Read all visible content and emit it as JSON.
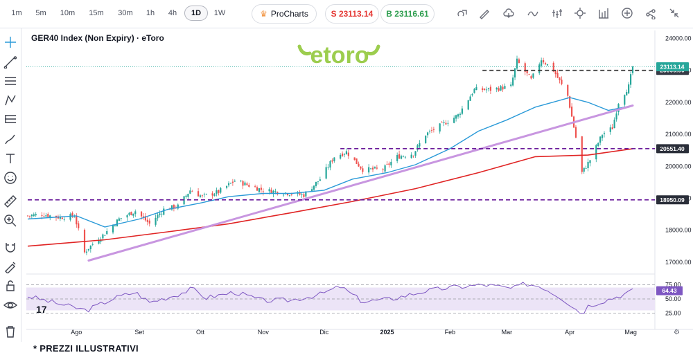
{
  "toolbar": {
    "timeframes": [
      "1m",
      "5m",
      "10m",
      "15m",
      "30m",
      "1h",
      "4h",
      "1D",
      "1W"
    ],
    "active_timeframe": "1D",
    "procharts_label": "ProCharts",
    "sell_label": "S 23113.14",
    "buy_label": "B 23116.61",
    "icons": [
      "compare-icon",
      "draw-icon",
      "cloud-icon",
      "line-type-icon",
      "indicators-icon",
      "settings-icon",
      "layout-icon",
      "add-icon",
      "share-icon",
      "collapse-icon"
    ]
  },
  "left_tools": [
    "crosshair-icon",
    "trendline-icon",
    "horizontal-lines-icon",
    "pattern-icon",
    "fib-icon",
    "brush-icon",
    "text-icon",
    "emoji-icon",
    "ruler-icon",
    "zoom-in-icon",
    "magnet-icon",
    "lock-drawing-icon",
    "lock-icon",
    "eye-icon",
    "trash-icon"
  ],
  "footer_text": "* PREZZI ILLUSTRATIVI",
  "colors": {
    "up": "#26a69a",
    "down": "#ef5350",
    "ma_fast": "#2a9ad8",
    "ma_slow": "#e02424",
    "trendline": "#c896e0",
    "level": "#6a1b9a",
    "rsi": "#7e57c2",
    "rsi_band": "#ece4f7",
    "logo": "#9ccd4e"
  },
  "chart_data": {
    "type": "candlestick",
    "title": "GER40 Index (Non Expiry) · eToro",
    "logo_text": "etoro",
    "y_ticks": [
      17000,
      18000,
      19000,
      20000,
      21000,
      22000,
      23000,
      24000
    ],
    "y_tick_labels": [
      "17000.00",
      "18000.00",
      "19000.00",
      "20000.00",
      "21000.00",
      "22000.00",
      "23000.00",
      "24000.00"
    ],
    "ylim": [
      16650,
      24250
    ],
    "x_labels": [
      "Ago",
      "Set",
      "Ott",
      "Nov",
      "Dic",
      "2025",
      "Feb",
      "Mar",
      "Apr",
      "Mag"
    ],
    "x_label_dates": [
      "2024-08-01",
      "2024-09-01",
      "2024-10-01",
      "2024-11-01",
      "2024-12-01",
      "2025-01-01",
      "2025-02-01",
      "2025-03-01",
      "2025-04-01",
      "2025-05-01"
    ],
    "date_range": [
      "2024-07-08",
      "2025-05-02"
    ],
    "close_path": [
      [
        "2024-07-08",
        18450
      ],
      [
        "2024-07-15",
        18500
      ],
      [
        "2024-07-24",
        18400
      ],
      [
        "2024-07-31",
        18450
      ],
      [
        "2024-08-05",
        17300
      ],
      [
        "2024-08-07",
        17450
      ],
      [
        "2024-08-15",
        17900
      ],
      [
        "2024-08-22",
        18350
      ],
      [
        "2024-08-30",
        18600
      ],
      [
        "2024-09-06",
        18200
      ],
      [
        "2024-09-13",
        18650
      ],
      [
        "2024-09-20",
        18750
      ],
      [
        "2024-09-26",
        19250
      ],
      [
        "2024-10-02",
        19050
      ],
      [
        "2024-10-10",
        19200
      ],
      [
        "2024-10-18",
        19550
      ],
      [
        "2024-10-25",
        19400
      ],
      [
        "2024-11-01",
        19250
      ],
      [
        "2024-11-08",
        19200
      ],
      [
        "2024-11-15",
        19150
      ],
      [
        "2024-11-21",
        19100
      ],
      [
        "2024-11-29",
        19600
      ],
      [
        "2024-12-06",
        20300
      ],
      [
        "2024-12-12",
        20450
      ],
      [
        "2024-12-20",
        19900
      ],
      [
        "2024-12-30",
        19900
      ],
      [
        "2025-01-06",
        20300
      ],
      [
        "2025-01-14",
        20400
      ],
      [
        "2025-01-20",
        21000
      ],
      [
        "2025-01-28",
        21300
      ],
      [
        "2025-02-05",
        21600
      ],
      [
        "2025-02-13",
        22400
      ],
      [
        "2025-02-21",
        22400
      ],
      [
        "2025-03-03",
        22500
      ],
      [
        "2025-03-06",
        23300
      ],
      [
        "2025-03-13",
        22700
      ],
      [
        "2025-03-18",
        23350
      ],
      [
        "2025-03-24",
        23000
      ],
      [
        "2025-03-31",
        22200
      ],
      [
        "2025-04-04",
        20900
      ],
      [
        "2025-04-07",
        19800
      ],
      [
        "2025-04-09",
        20000
      ],
      [
        "2025-04-11",
        20200
      ],
      [
        "2025-04-17",
        21000
      ],
      [
        "2025-04-22",
        21200
      ],
      [
        "2025-04-25",
        22000
      ],
      [
        "2025-04-30",
        22500
      ],
      [
        "2025-05-02",
        23113
      ]
    ],
    "series": [
      {
        "name": "MA 50",
        "points": [
          [
            "2024-07-08",
            18350
          ],
          [
            "2024-08-01",
            18450
          ],
          [
            "2024-08-15",
            18100
          ],
          [
            "2024-09-01",
            18350
          ],
          [
            "2024-09-15",
            18650
          ],
          [
            "2024-10-01",
            18850
          ],
          [
            "2024-10-15",
            19050
          ],
          [
            "2024-11-01",
            19150
          ],
          [
            "2024-11-15",
            19150
          ],
          [
            "2024-12-01",
            19250
          ],
          [
            "2024-12-15",
            19600
          ],
          [
            "2025-01-01",
            19800
          ],
          [
            "2025-01-15",
            20050
          ],
          [
            "2025-02-01",
            20550
          ],
          [
            "2025-02-15",
            21100
          ],
          [
            "2025-03-01",
            21450
          ],
          [
            "2025-03-15",
            21850
          ],
          [
            "2025-04-01",
            22150
          ],
          [
            "2025-04-10",
            22000
          ],
          [
            "2025-04-20",
            21750
          ],
          [
            "2025-05-02",
            21900
          ]
        ]
      },
      {
        "name": "MA 200",
        "points": [
          [
            "2024-07-08",
            17500
          ],
          [
            "2024-08-15",
            17700
          ],
          [
            "2024-09-15",
            17950
          ],
          [
            "2024-10-15",
            18200
          ],
          [
            "2024-11-15",
            18550
          ],
          [
            "2024-12-15",
            18900
          ],
          [
            "2025-01-15",
            19300
          ],
          [
            "2025-02-15",
            19800
          ],
          [
            "2025-03-15",
            20300
          ],
          [
            "2025-04-10",
            20350
          ],
          [
            "2025-05-02",
            20550
          ]
        ]
      }
    ],
    "trendline": [
      [
        "2024-08-07",
        17050
      ],
      [
        "2025-05-02",
        21900
      ]
    ],
    "levels": [
      {
        "value": 23000.0,
        "label": "23000.00",
        "from": "2025-02-17"
      },
      {
        "value": 20551.4,
        "label": "20551.40",
        "from": "2024-12-09"
      },
      {
        "value": 18950.09,
        "label": "18950.09",
        "from": "2024-07-08"
      }
    ],
    "last_price": {
      "value": 23113.14,
      "label": "23113.14"
    },
    "rsi": {
      "ticks": [
        25,
        50,
        75
      ],
      "tick_labels": [
        "25.00",
        "50.00",
        "75.00"
      ],
      "ylim": [
        16,
        84
      ],
      "band": [
        30,
        70
      ],
      "last": {
        "value": 64.43,
        "label": "64.43"
      },
      "points": [
        [
          "2024-07-08",
          55
        ],
        [
          "2024-07-25",
          40
        ],
        [
          "2024-08-06",
          30
        ],
        [
          "2024-08-20",
          52
        ],
        [
          "2024-08-30",
          62
        ],
        [
          "2024-09-06",
          44
        ],
        [
          "2024-09-20",
          58
        ],
        [
          "2024-09-27",
          68
        ],
        [
          "2024-10-04",
          52
        ],
        [
          "2024-10-18",
          62
        ],
        [
          "2024-11-01",
          47
        ],
        [
          "2024-11-15",
          48
        ],
        [
          "2024-11-29",
          58
        ],
        [
          "2024-12-09",
          72
        ],
        [
          "2024-12-20",
          45
        ],
        [
          "2025-01-03",
          50
        ],
        [
          "2025-01-20",
          64
        ],
        [
          "2025-02-01",
          70
        ],
        [
          "2025-02-18",
          75
        ],
        [
          "2025-03-04",
          68
        ],
        [
          "2025-03-10",
          77
        ],
        [
          "2025-03-18",
          72
        ],
        [
          "2025-03-28",
          52
        ],
        [
          "2025-04-07",
          24
        ],
        [
          "2025-04-10",
          38
        ],
        [
          "2025-04-17",
          46
        ],
        [
          "2025-04-25",
          55
        ],
        [
          "2025-05-02",
          64.43
        ]
      ]
    }
  }
}
